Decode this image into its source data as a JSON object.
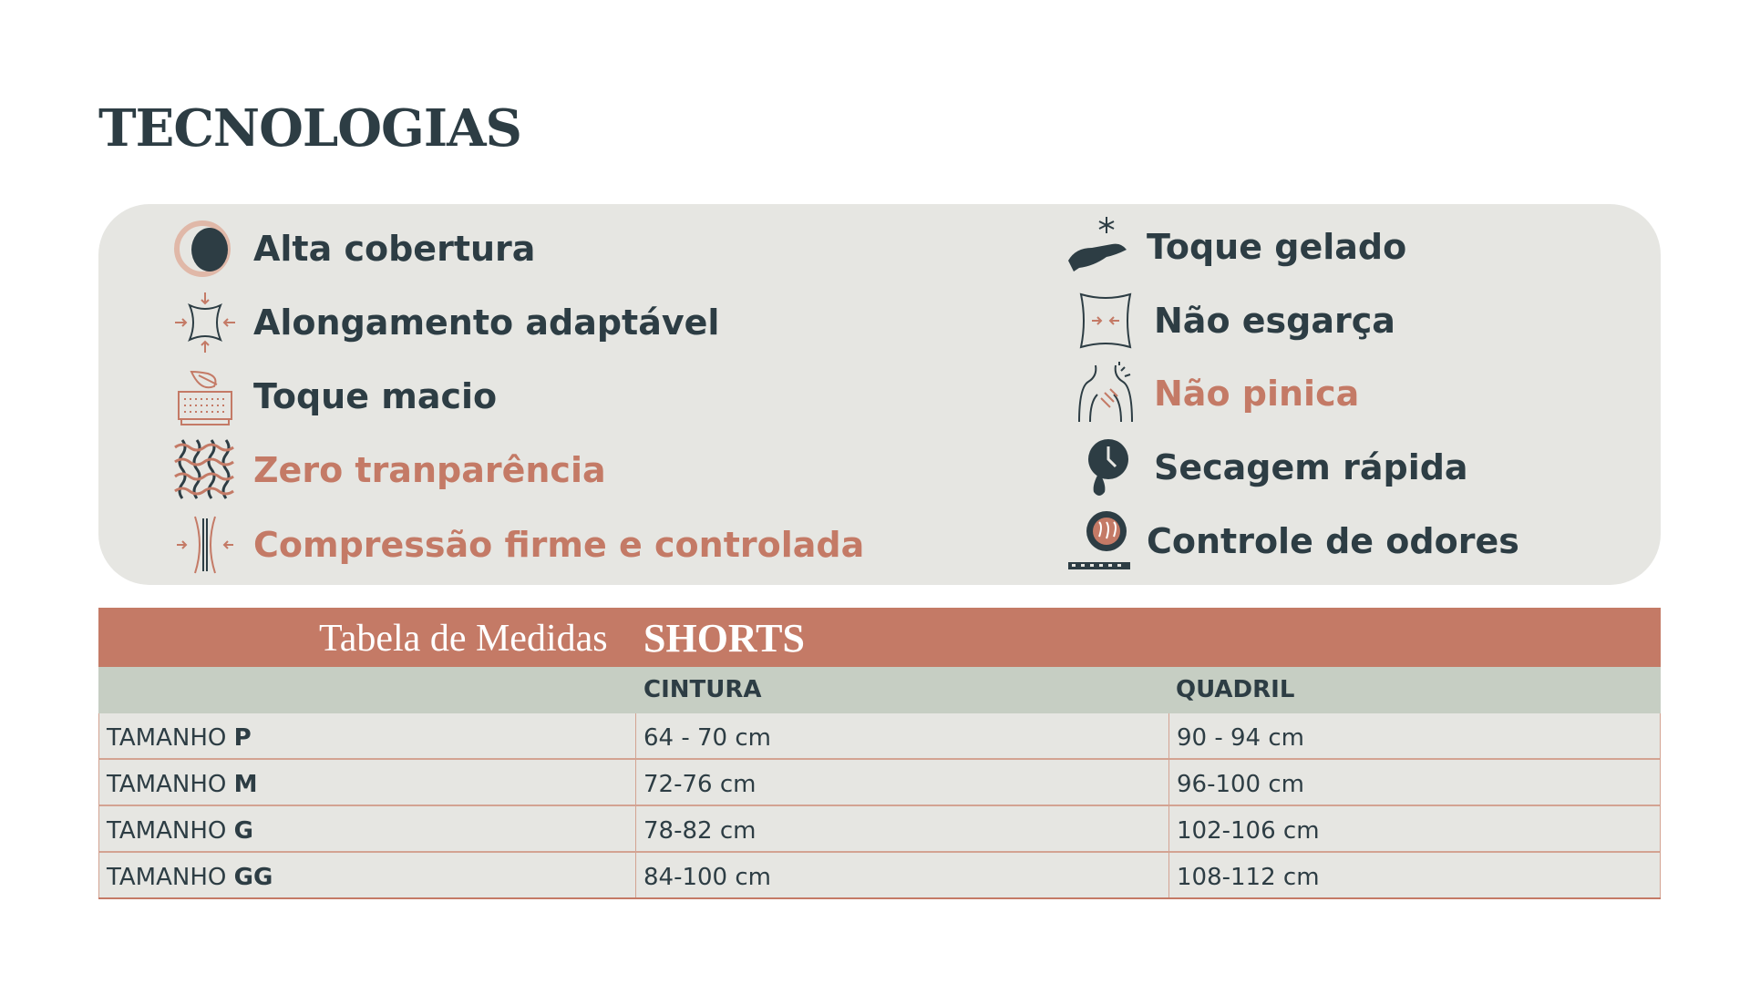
{
  "title": "TECNOLOGIAS",
  "colors": {
    "dark": "#2d3d44",
    "accent": "#c47a66",
    "panel": "#e6e6e2",
    "subheader": "#c6cec3"
  },
  "features_left": [
    {
      "label": "Alta cobertura",
      "icon": "moon-coverage-icon",
      "highlight": false
    },
    {
      "label": "Alongamento adaptável",
      "icon": "stretch-arrows-icon",
      "highlight": false
    },
    {
      "label": "Toque macio",
      "icon": "feather-cushion-icon",
      "highlight": false
    },
    {
      "label": "Zero tranparência",
      "icon": "woven-fabric-icon",
      "highlight": true
    },
    {
      "label": "Compressão firme e controlada",
      "icon": "compression-icon",
      "highlight": true
    }
  ],
  "features_right": [
    {
      "label": "Toque gelado",
      "icon": "hand-snowflake-icon",
      "highlight": false
    },
    {
      "label": "Não esgarça",
      "icon": "fabric-square-icon",
      "highlight": false
    },
    {
      "label": "Não pinica",
      "icon": "body-scratch-icon",
      "highlight": true
    },
    {
      "label": "Secagem rápida",
      "icon": "drop-clock-icon",
      "highlight": false
    },
    {
      "label": "Controle de odores",
      "icon": "odor-control-icon",
      "highlight": false
    }
  ],
  "table": {
    "title": "Tabela de Medidas",
    "title_bold": "SHORTS",
    "headers": [
      "",
      "CINTURA",
      "QUADRIL"
    ],
    "rows": [
      {
        "prefix": "TAMANHO",
        "size": "P",
        "cintura": "64 - 70 cm",
        "quadril": "90 - 94 cm"
      },
      {
        "prefix": "TAMANHO",
        "size": "M",
        "cintura": "72-76 cm",
        "quadril": "96-100 cm"
      },
      {
        "prefix": "TAMANHO",
        "size": "G",
        "cintura": "78-82 cm",
        "quadril": "102-106 cm"
      },
      {
        "prefix": "TAMANHO",
        "size": "GG",
        "cintura": "84-100 cm",
        "quadril": "108-112 cm"
      }
    ]
  }
}
